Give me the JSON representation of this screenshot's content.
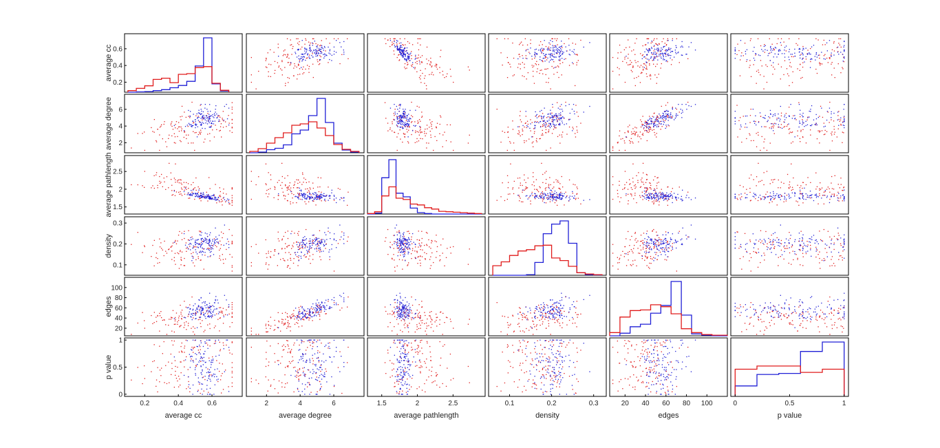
{
  "chart_data": {
    "type": "scatter-matrix",
    "variables": [
      {
        "name": "average cc",
        "range": [
          0.08,
          0.78
        ],
        "ticks": [
          0.2,
          0.4,
          0.6
        ],
        "ytick_labels": [
          "0.2",
          "0.4",
          "0.6"
        ],
        "xtick_labels": [
          "0.2",
          "0.4",
          "0.6"
        ]
      },
      {
        "name": "average degree",
        "range": [
          0.8,
          7.8
        ],
        "ticks": [
          2,
          4,
          6
        ],
        "ytick_labels": [
          "2",
          "4",
          "6"
        ],
        "xtick_labels": [
          "2",
          "4",
          "6"
        ]
      },
      {
        "name": "average pathlength",
        "range": [
          1.3,
          2.95
        ],
        "ticks": [
          1.5,
          2,
          2.5
        ],
        "ytick_labels": [
          "1.5",
          "2",
          "2.5"
        ],
        "xtick_labels": [
          "1.5",
          "2",
          "2.5"
        ]
      },
      {
        "name": "density",
        "range": [
          0.05,
          0.33
        ],
        "ticks": [
          0.1,
          0.2,
          0.3
        ],
        "ytick_labels": [
          "0.1",
          "0.2",
          "0.3"
        ],
        "xtick_labels": [
          "0.1",
          "0.2",
          "0.3"
        ]
      },
      {
        "name": "edges",
        "range": [
          5,
          120
        ],
        "ticks": [
          20,
          40,
          60,
          80,
          100
        ],
        "ytick_labels": [
          "20",
          "40",
          "60",
          "80",
          "100"
        ],
        "xtick_labels": [
          "20",
          "40",
          "60",
          "80",
          "100"
        ]
      },
      {
        "name": "p value",
        "range": [
          -0.04,
          1.04
        ],
        "ticks": [
          0,
          0.5,
          1
        ],
        "ytick_labels": [
          "0",
          "0.5",
          "1"
        ],
        "xtick_labels": [
          "0",
          "0.5",
          "1"
        ]
      }
    ],
    "series_colors": [
      "#1f1fd6",
      "#e01b1b"
    ],
    "histograms": [
      {
        "bins": [
          0.1,
          0.15,
          0.2,
          0.25,
          0.3,
          0.35,
          0.4,
          0.45,
          0.5,
          0.55,
          0.6,
          0.65,
          0.7
        ],
        "series": [
          {
            "color": "#1f1fd6",
            "values": [
              0,
              1,
              2,
              5,
              8,
              14,
              21,
              34,
              82,
              170,
              26,
              4
            ]
          },
          {
            "color": "#e01b1b",
            "values": [
              5,
              12,
              20,
              40,
              44,
              30,
              56,
              58,
              77,
              80,
              28,
              6
            ]
          }
        ]
      },
      {
        "bins": [
          1,
          1.5,
          2,
          2.5,
          3,
          3.5,
          4,
          4.5,
          5,
          5.5,
          6,
          6.5,
          7,
          7.5
        ],
        "series": [
          {
            "color": "#1f1fd6",
            "values": [
              0,
              2,
              9,
              13,
              23,
              55,
              66,
              108,
              158,
              88,
              28,
              8,
              2
            ]
          },
          {
            "color": "#e01b1b",
            "values": [
              4,
              12,
              28,
              44,
              58,
              80,
              84,
              90,
              72,
              50,
              24,
              10,
              4
            ]
          }
        ]
      },
      {
        "bins": [
          1.3,
          1.4,
          1.5,
          1.6,
          1.7,
          1.8,
          1.9,
          2.0,
          2.1,
          2.2,
          2.3,
          2.4,
          2.5,
          2.6,
          2.7,
          2.8,
          2.9
        ],
        "series": [
          {
            "color": "#1f1fd6",
            "values": [
              0,
              4,
              160,
              240,
              92,
              76,
              26,
              6,
              2,
              0,
              0,
              0,
              0,
              0,
              0,
              0
            ]
          },
          {
            "color": "#e01b1b",
            "values": [
              2,
              10,
              80,
              120,
              70,
              64,
              44,
              40,
              28,
              22,
              12,
              10,
              8,
              6,
              4,
              2
            ]
          }
        ]
      },
      {
        "bins": [
          0.06,
          0.08,
          0.1,
          0.12,
          0.14,
          0.16,
          0.18,
          0.2,
          0.22,
          0.24,
          0.26,
          0.28,
          0.3,
          0.32
        ],
        "series": [
          {
            "color": "#1f1fd6",
            "values": [
              0,
              0,
              0,
              0,
              2,
              40,
              130,
              160,
              170,
              100,
              8,
              2,
              1
            ]
          },
          {
            "color": "#e01b1b",
            "values": [
              30,
              42,
              62,
              76,
              80,
              92,
              94,
              54,
              46,
              28,
              8,
              4,
              2
            ]
          }
        ]
      },
      {
        "bins": [
          5,
          15,
          25,
          35,
          45,
          55,
          65,
          75,
          85,
          95,
          105,
          115,
          120
        ],
        "series": [
          {
            "color": "#1f1fd6",
            "values": [
              0,
              8,
              28,
              36,
              70,
              94,
              168,
              64,
              6,
              2,
              0,
              0
            ]
          },
          {
            "color": "#e01b1b",
            "values": [
              10,
              58,
              78,
              80,
              96,
              90,
              68,
              22,
              10,
              4,
              2,
              2
            ]
          }
        ]
      },
      {
        "bins": [
          0,
          0.2,
          0.4,
          0.6,
          0.8,
          1
        ],
        "series": [
          {
            "color": "#1f1fd6",
            "values": [
              20,
              42,
              44,
              86,
              104
            ]
          },
          {
            "color": "#e01b1b",
            "values": [
              52,
              58,
              58,
              46,
              52
            ]
          }
        ]
      }
    ],
    "legend": "none",
    "grid": false
  }
}
